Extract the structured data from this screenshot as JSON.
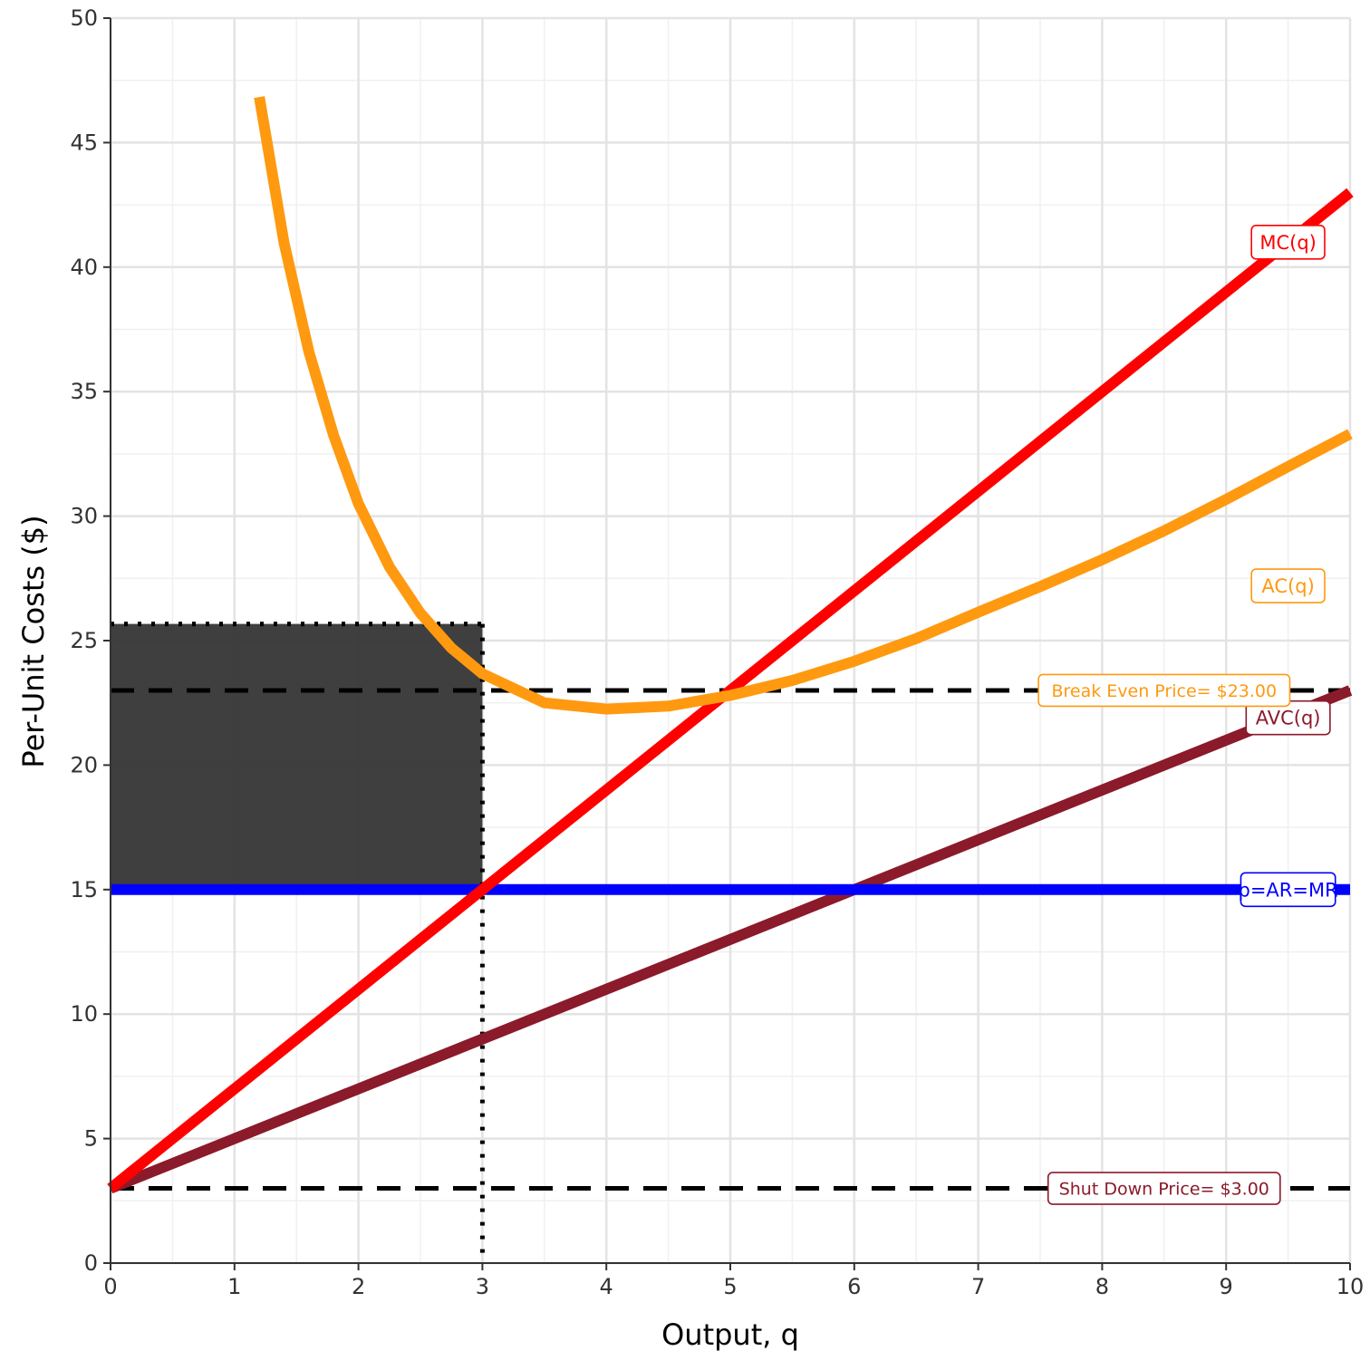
{
  "chart_data": {
    "type": "line",
    "xlabel": "Output, q",
    "ylabel": "Per-Unit Costs ($)",
    "xlim": [
      0,
      10
    ],
    "ylim": [
      0,
      50
    ],
    "x_ticks": [
      0,
      1,
      2,
      3,
      4,
      5,
      6,
      7,
      8,
      9,
      10
    ],
    "y_ticks": [
      0,
      5,
      10,
      15,
      20,
      25,
      30,
      35,
      40,
      45,
      50
    ],
    "grid": true,
    "series": [
      {
        "name": "MC(q)",
        "color": "#ff0000",
        "x": [
          0,
          10
        ],
        "y": [
          3,
          43
        ]
      },
      {
        "name": "AVC(q)",
        "color": "#8b1a2b",
        "x": [
          0,
          10
        ],
        "y": [
          3,
          23
        ]
      },
      {
        "name": "p=AR=MR",
        "color": "#0000ff",
        "x": [
          0,
          10
        ],
        "y": [
          15,
          15
        ]
      },
      {
        "name": "AC(q)",
        "color": "#ff9910",
        "x": [
          1.2,
          1.4,
          1.6,
          1.8,
          2,
          2.25,
          2.5,
          2.75,
          3,
          3.5,
          4,
          4.5,
          5,
          5.5,
          6,
          6.5,
          7,
          7.5,
          8,
          8.5,
          9,
          9.5,
          10
        ],
        "y": [
          46.83,
          40.97,
          36.6,
          33.24,
          30.5,
          27.96,
          26.1,
          24.7,
          23.67,
          22.5,
          22.25,
          22.37,
          22.8,
          23.4,
          24.17,
          25.08,
          26.14,
          27.17,
          28.25,
          29.41,
          30.67,
          31.99,
          33.3
        ]
      }
    ],
    "reference_lines": [
      {
        "label": "Break Even Price= $23.00",
        "y": 23,
        "style": "dashed",
        "color": "#ff9910"
      },
      {
        "label": "Shut Down Price= $3.00",
        "y": 3,
        "style": "dashed",
        "color": "#8b1a2b"
      }
    ],
    "vertical_line": {
      "x": 3,
      "style": "dotted"
    },
    "shaded_region": {
      "x": [
        0,
        3
      ],
      "y": [
        15,
        25.67
      ],
      "meaning": "loss"
    }
  }
}
